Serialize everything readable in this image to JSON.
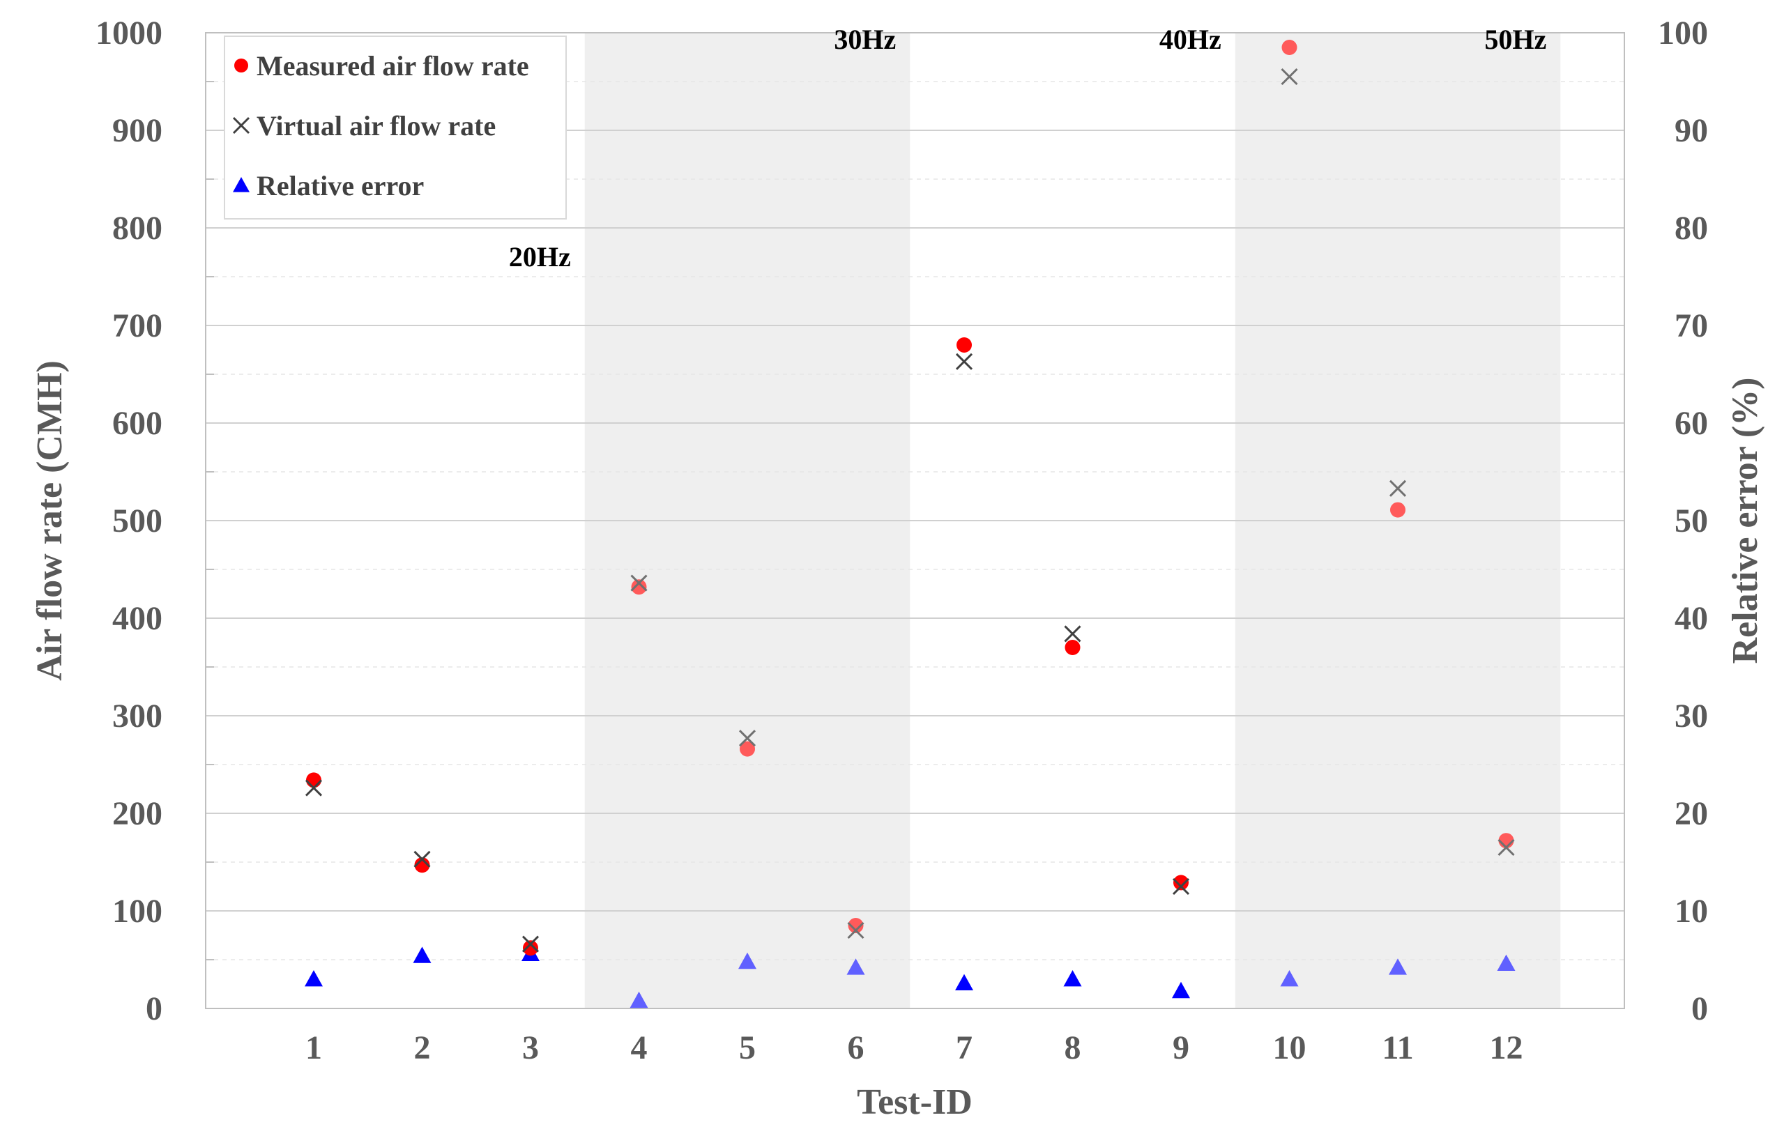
{
  "chart_data": {
    "type": "scatter",
    "xlabel": "Test-ID",
    "ylabel": "Air flow rate (CMH)",
    "y2label": "Relative error (%)",
    "categories": [
      "1",
      "2",
      "3",
      "4",
      "5",
      "6",
      "7",
      "8",
      "9",
      "10",
      "11",
      "12"
    ],
    "ylim": [
      0,
      1000
    ],
    "y2lim": [
      0,
      100
    ],
    "yticks": [
      "0",
      "100",
      "200",
      "300",
      "400",
      "500",
      "600",
      "700",
      "800",
      "900",
      "1000"
    ],
    "y2ticks": [
      "0",
      "10",
      "20",
      "30",
      "40",
      "50",
      "60",
      "70",
      "80",
      "90",
      "100"
    ],
    "grid": true,
    "legend_position": "top-left",
    "bands": [
      {
        "label": "20Hz",
        "from": 1,
        "to": 3,
        "shaded": false
      },
      {
        "label": "30Hz",
        "from": 4,
        "to": 6,
        "shaded": true
      },
      {
        "label": "40Hz",
        "from": 7,
        "to": 9,
        "shaded": false
      },
      {
        "label": "50Hz",
        "from": 10,
        "to": 12,
        "shaded": true
      }
    ],
    "series": [
      {
        "name": "Measured air flow rate",
        "axis": "left",
        "marker": "circle",
        "color": "#ff0000",
        "values": [
          234,
          147,
          62,
          432,
          266,
          85,
          680,
          370,
          129,
          985,
          511,
          172
        ]
      },
      {
        "name": "Virtual air flow rate",
        "axis": "left",
        "marker": "x",
        "color": "#404040",
        "values": [
          226,
          153,
          66,
          436,
          277,
          80,
          663,
          384,
          125,
          955,
          533,
          165
        ]
      },
      {
        "name": "Relative error",
        "axis": "right",
        "marker": "triangle",
        "color": "#0000ff",
        "values": [
          3.0,
          5.4,
          5.6,
          0.8,
          4.8,
          4.2,
          2.6,
          3.0,
          1.8,
          3.0,
          4.2,
          4.6
        ]
      }
    ]
  }
}
